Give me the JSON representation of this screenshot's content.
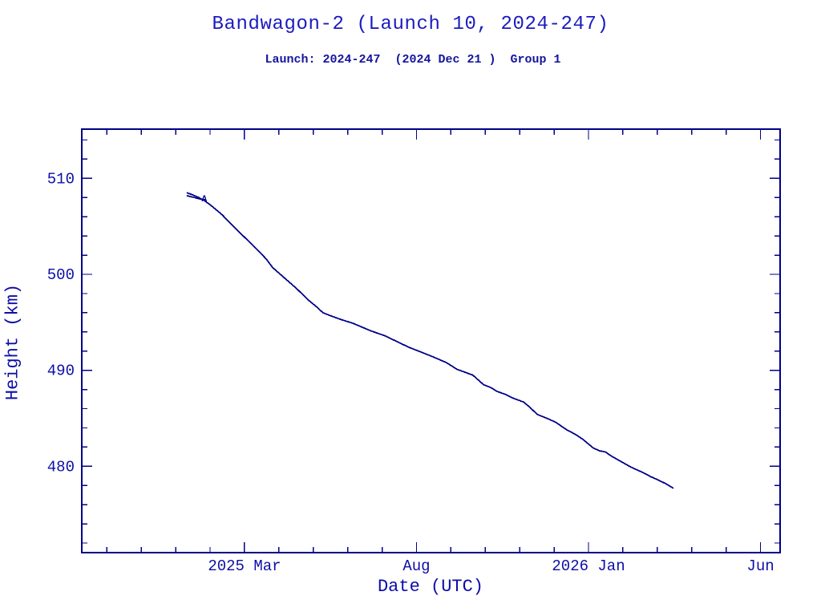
{
  "header": {
    "title": "Bandwagon-2 (Launch 10, 2024-247)",
    "subtitle": "Launch: 2024-247  (2024 Dec 21 )  Group 1"
  },
  "colors": {
    "background": "#ffffff",
    "title_ink": "#1b1bc0",
    "axis_ink": "#000088",
    "curve_ink": "#000088",
    "tick_label_ink": "#0d0da8"
  },
  "chart_data": {
    "type": "line",
    "title": "Bandwagon-2 (Launch 10, 2024-247)",
    "subtitle": "Launch: 2024-247  (2024 Dec 21 )  Group 1",
    "xlabel": "Date (UTC)",
    "ylabel": "Height (km)",
    "grid": false,
    "legend": "none",
    "x_unit": "months after 2025 Mar 1",
    "xlim": [
      -4.73,
      15.57
    ],
    "ylim": [
      471.0,
      515.13
    ],
    "x_major_ticks": [
      {
        "t": 0,
        "label": "2025 Mar"
      },
      {
        "t": 5,
        "label": "Aug"
      },
      {
        "t": 10,
        "label": "2026 Jan"
      },
      {
        "t": 15,
        "label": "Jun"
      }
    ],
    "x_minor_tick_step_months": 1,
    "y_major_ticks": [
      480,
      490,
      500,
      510
    ],
    "y_minor_tick_step": 2,
    "series": [
      {
        "name": "object A height",
        "marker_label": "A",
        "marker_at": {
          "t": -1.17,
          "h": 507.95
        },
        "points": [
          [
            -1.68,
            508.5
          ],
          [
            -1.52,
            508.3
          ],
          [
            -1.33,
            508.0
          ],
          [
            -1.17,
            507.7
          ],
          [
            -0.98,
            507.2
          ],
          [
            -0.65,
            506.2
          ],
          [
            -0.35,
            505.1
          ],
          [
            0.05,
            503.7
          ],
          [
            0.42,
            502.4
          ],
          [
            0.63,
            501.6
          ],
          [
            0.82,
            500.7
          ],
          [
            1.17,
            499.6
          ],
          [
            1.52,
            498.5
          ],
          [
            1.86,
            497.3
          ],
          [
            2.1,
            496.6
          ],
          [
            2.28,
            496.0
          ],
          [
            2.49,
            495.7
          ],
          [
            2.8,
            495.3
          ],
          [
            3.15,
            494.9
          ],
          [
            3.68,
            494.1
          ],
          [
            4.08,
            493.6
          ],
          [
            4.43,
            493.0
          ],
          [
            4.78,
            492.4
          ],
          [
            5.13,
            491.9
          ],
          [
            5.48,
            491.4
          ],
          [
            5.87,
            490.8
          ],
          [
            6.18,
            490.1
          ],
          [
            6.41,
            489.8
          ],
          [
            6.64,
            489.5
          ],
          [
            6.95,
            488.5
          ],
          [
            7.16,
            488.2
          ],
          [
            7.34,
            487.8
          ],
          [
            7.58,
            487.5
          ],
          [
            7.81,
            487.1
          ],
          [
            8.11,
            486.7
          ],
          [
            8.28,
            486.2
          ],
          [
            8.51,
            485.4
          ],
          [
            8.79,
            485.0
          ],
          [
            9.04,
            484.6
          ],
          [
            9.37,
            483.8
          ],
          [
            9.63,
            483.3
          ],
          [
            9.84,
            482.8
          ],
          [
            10.14,
            481.9
          ],
          [
            10.33,
            481.6
          ],
          [
            10.49,
            481.5
          ],
          [
            10.65,
            481.1
          ],
          [
            10.84,
            480.7
          ],
          [
            11.24,
            479.9
          ],
          [
            11.61,
            479.3
          ],
          [
            11.82,
            478.9
          ],
          [
            12.01,
            478.6
          ],
          [
            12.24,
            478.2
          ],
          [
            12.47,
            477.7
          ]
        ]
      },
      {
        "name": "start fork segment",
        "marker_label": "",
        "points": [
          [
            -1.68,
            508.2
          ],
          [
            -1.45,
            508.0
          ],
          [
            -1.24,
            507.8
          ]
        ]
      }
    ]
  }
}
